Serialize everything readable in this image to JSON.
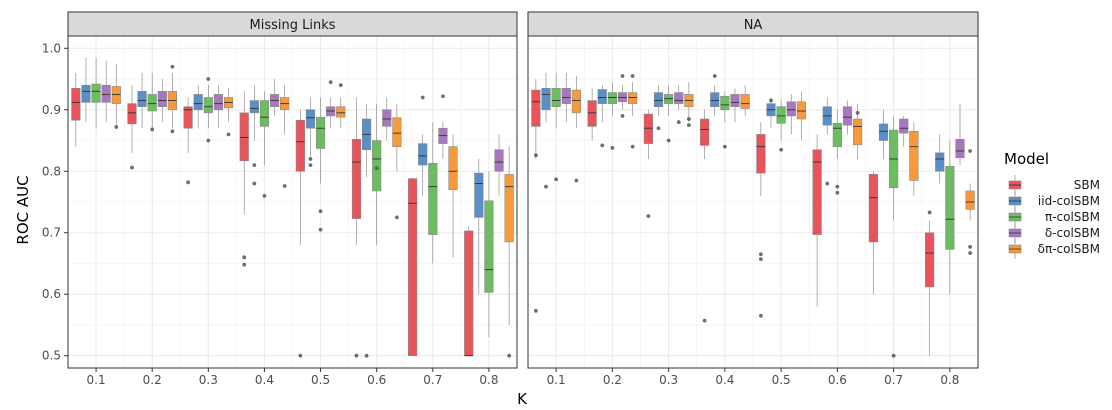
{
  "chart_data": {
    "type": "boxplot",
    "xlabel": "K",
    "ylabel": "ROC AUC",
    "ylim": [
      0.48,
      1.02
    ],
    "yticks": [
      "0.5",
      "0.6",
      "0.7",
      "0.8",
      "0.9",
      "1.0"
    ],
    "categories": [
      "0.1",
      "0.2",
      "0.3",
      "0.4",
      "0.5",
      "0.6",
      "0.7",
      "0.8"
    ],
    "legend_title": "Model",
    "legend_position": "right",
    "series": [
      {
        "name": "SBM",
        "color": "#e8545a"
      },
      {
        "name": "iid-colSBM",
        "color": "#5a8ec6"
      },
      {
        "name": "π-colSBM",
        "color": "#6cbd60"
      },
      {
        "name": "δ-colSBM",
        "color": "#a877bd"
      },
      {
        "name": "δπ-colSBM",
        "color": "#f89a3a"
      }
    ],
    "panels": [
      {
        "title": "Missing Links",
        "boxes": [
          [
            {
              "q": [
                0.84,
                0.883,
                0.912,
                0.935,
                0.96
              ],
              "out": []
            },
            {
              "q": [
                0.88,
                0.912,
                0.93,
                0.94,
                0.985
              ],
              "out": []
            },
            {
              "q": [
                0.87,
                0.912,
                0.93,
                0.942,
                0.985
              ],
              "out": []
            },
            {
              "q": [
                0.88,
                0.912,
                0.925,
                0.94,
                0.98
              ],
              "out": []
            },
            {
              "q": [
                0.87,
                0.91,
                0.925,
                0.938,
                0.975
              ],
              "out": [
                0.872
              ]
            }
          ],
          [
            {
              "q": [
                0.83,
                0.877,
                0.895,
                0.91,
                0.94
              ],
              "out": [
                0.806
              ]
            },
            {
              "q": [
                0.87,
                0.905,
                0.915,
                0.93,
                0.96
              ],
              "out": []
            },
            {
              "q": [
                0.87,
                0.898,
                0.91,
                0.925,
                0.96
              ],
              "out": [
                0.868
              ]
            },
            {
              "q": [
                0.88,
                0.905,
                0.915,
                0.93,
                0.95
              ],
              "out": []
            },
            {
              "q": [
                0.87,
                0.9,
                0.915,
                0.93,
                0.96
              ],
              "out": [
                0.97,
                0.865
              ]
            }
          ],
          [
            {
              "q": [
                0.83,
                0.87,
                0.9,
                0.905,
                0.92
              ],
              "out": [
                0.782
              ]
            },
            {
              "q": [
                0.87,
                0.9,
                0.91,
                0.925,
                0.94
              ],
              "out": []
            },
            {
              "q": [
                0.87,
                0.895,
                0.905,
                0.92,
                0.94
              ],
              "out": [
                0.95,
                0.85
              ]
            },
            {
              "q": [
                0.87,
                0.9,
                0.91,
                0.925,
                0.94
              ],
              "out": []
            },
            {
              "q": [
                0.88,
                0.903,
                0.912,
                0.92,
                0.935
              ],
              "out": [
                0.86
              ]
            }
          ],
          [
            {
              "q": [
                0.73,
                0.817,
                0.855,
                0.895,
                0.93
              ],
              "out": [
                0.66,
                0.648
              ]
            },
            {
              "q": [
                0.85,
                0.895,
                0.902,
                0.915,
                0.94
              ],
              "out": [
                0.81,
                0.78
              ]
            },
            {
              "q": [
                0.81,
                0.873,
                0.888,
                0.915,
                0.93
              ],
              "out": [
                0.76
              ]
            },
            {
              "q": [
                0.89,
                0.905,
                0.915,
                0.925,
                0.95
              ],
              "out": []
            },
            {
              "q": [
                0.86,
                0.9,
                0.91,
                0.92,
                0.94
              ],
              "out": [
                0.776
              ]
            }
          ],
          [
            {
              "q": [
                0.68,
                0.8,
                0.848,
                0.883,
                0.9
              ],
              "out": [
                0.5
              ]
            },
            {
              "q": [
                0.82,
                0.87,
                0.887,
                0.9,
                0.92
              ],
              "out": [
                0.82,
                0.81
              ]
            },
            {
              "q": [
                0.78,
                0.837,
                0.87,
                0.888,
                0.92
              ],
              "out": [
                0.735,
                0.705
              ]
            },
            {
              "q": [
                0.87,
                0.89,
                0.898,
                0.905,
                0.92
              ],
              "out": [
                0.945
              ]
            },
            {
              "q": [
                0.87,
                0.888,
                0.895,
                0.905,
                0.92
              ],
              "out": [
                0.94
              ]
            }
          ],
          [
            {
              "q": [
                0.68,
                0.723,
                0.815,
                0.852,
                0.92
              ],
              "out": [
                0.5
              ]
            },
            {
              "q": [
                0.79,
                0.835,
                0.86,
                0.885,
                0.91
              ],
              "out": [
                0.5
              ]
            },
            {
              "q": [
                0.68,
                0.768,
                0.82,
                0.85,
                0.91
              ],
              "out": [
                0.805
              ]
            },
            {
              "q": [
                0.85,
                0.873,
                0.885,
                0.9,
                0.92
              ],
              "out": []
            },
            {
              "q": [
                0.8,
                0.84,
                0.862,
                0.887,
                0.91
              ],
              "out": [
                0.725
              ]
            }
          ],
          [
            {
              "q": [
                0.5,
                0.5,
                0.748,
                0.788,
                0.79
              ],
              "out": []
            },
            {
              "q": [
                0.76,
                0.81,
                0.825,
                0.845,
                0.86
              ],
              "out": [
                0.92
              ]
            },
            {
              "q": [
                0.65,
                0.697,
                0.775,
                0.813,
                0.88
              ],
              "out": []
            },
            {
              "q": [
                0.82,
                0.845,
                0.858,
                0.87,
                0.88
              ],
              "out": [
                0.922
              ]
            },
            {
              "q": [
                0.66,
                0.77,
                0.8,
                0.84,
                0.86
              ],
              "out": []
            }
          ],
          [
            {
              "q": [
                0.5,
                0.5,
                0.5,
                0.703,
                0.71
              ],
              "out": []
            },
            {
              "q": [
                0.6,
                0.725,
                0.78,
                0.797,
                0.82
              ],
              "out": []
            },
            {
              "q": [
                0.53,
                0.603,
                0.64,
                0.752,
                0.8
              ],
              "out": []
            },
            {
              "q": [
                0.76,
                0.8,
                0.815,
                0.835,
                0.86
              ],
              "out": []
            },
            {
              "q": [
                0.55,
                0.685,
                0.775,
                0.795,
                0.84
              ],
              "out": [
                0.5
              ]
            }
          ]
        ]
      },
      {
        "title": "NA",
        "boxes": [
          [
            {
              "q": [
                0.82,
                0.873,
                0.913,
                0.932,
                0.95
              ],
              "out": [
                0.573,
                0.826
              ]
            },
            {
              "q": [
                0.88,
                0.9,
                0.925,
                0.935,
                0.96
              ],
              "out": [
                0.775
              ]
            },
            {
              "q": [
                0.87,
                0.905,
                0.915,
                0.935,
                0.96
              ],
              "out": [
                0.787
              ]
            },
            {
              "q": [
                0.88,
                0.91,
                0.92,
                0.935,
                0.96
              ],
              "out": []
            },
            {
              "q": [
                0.87,
                0.895,
                0.915,
                0.932,
                0.955
              ],
              "out": [
                0.785
              ]
            }
          ],
          [
            {
              "q": [
                0.85,
                0.873,
                0.895,
                0.915,
                0.935
              ],
              "out": []
            },
            {
              "q": [
                0.88,
                0.91,
                0.92,
                0.933,
                0.94
              ],
              "out": [
                0.842
              ]
            },
            {
              "q": [
                0.89,
                0.91,
                0.92,
                0.928,
                0.945
              ],
              "out": [
                0.838
              ]
            },
            {
              "q": [
                0.9,
                0.913,
                0.92,
                0.928,
                0.94
              ],
              "out": [
                0.955,
                0.89
              ]
            },
            {
              "q": [
                0.89,
                0.91,
                0.92,
                0.928,
                0.945
              ],
              "out": [
                0.955,
                0.84
              ]
            }
          ],
          [
            {
              "q": [
                0.82,
                0.845,
                0.87,
                0.893,
                0.9
              ],
              "out": [
                0.727
              ]
            },
            {
              "q": [
                0.89,
                0.905,
                0.915,
                0.928,
                0.94
              ],
              "out": [
                0.87
              ]
            },
            {
              "q": [
                0.89,
                0.91,
                0.918,
                0.925,
                0.94
              ],
              "out": [
                0.85
              ]
            },
            {
              "q": [
                0.9,
                0.91,
                0.915,
                0.928,
                0.94
              ],
              "out": [
                0.88
              ]
            },
            {
              "q": [
                0.88,
                0.905,
                0.915,
                0.925,
                0.945
              ],
              "out": [
                0.885,
                0.875
              ]
            }
          ],
          [
            {
              "q": [
                0.82,
                0.842,
                0.868,
                0.885,
                0.9
              ],
              "out": [
                0.557
              ]
            },
            {
              "q": [
                0.89,
                0.905,
                0.915,
                0.928,
                0.94
              ],
              "out": [
                0.955
              ]
            },
            {
              "q": [
                0.88,
                0.9,
                0.908,
                0.922,
                0.93
              ],
              "out": [
                0.84
              ]
            },
            {
              "q": [
                0.88,
                0.905,
                0.912,
                0.925,
                0.935
              ],
              "out": []
            },
            {
              "q": [
                0.89,
                0.902,
                0.91,
                0.925,
                0.94
              ],
              "out": []
            }
          ],
          [
            {
              "q": [
                0.76,
                0.797,
                0.84,
                0.86,
                0.88
              ],
              "out": [
                0.565,
                0.665,
                0.657
              ]
            },
            {
              "q": [
                0.87,
                0.89,
                0.9,
                0.91,
                0.92
              ],
              "out": [
                0.915
              ]
            },
            {
              "q": [
                0.85,
                0.878,
                0.89,
                0.905,
                0.915
              ],
              "out": [
                0.835
              ]
            },
            {
              "q": [
                0.86,
                0.89,
                0.9,
                0.913,
                0.925
              ],
              "out": []
            },
            {
              "q": [
                0.85,
                0.885,
                0.898,
                0.913,
                0.93
              ],
              "out": []
            }
          ],
          [
            {
              "q": [
                0.58,
                0.697,
                0.815,
                0.835,
                0.86
              ],
              "out": []
            },
            {
              "q": [
                0.86,
                0.875,
                0.89,
                0.905,
                0.92
              ],
              "out": [
                0.78
              ]
            },
            {
              "q": [
                0.82,
                0.84,
                0.87,
                0.878,
                0.9
              ],
              "out": [
                0.775,
                0.765
              ]
            },
            {
              "q": [
                0.86,
                0.875,
                0.888,
                0.905,
                0.915
              ],
              "out": []
            },
            {
              "q": [
                0.82,
                0.843,
                0.873,
                0.885,
                0.91
              ],
              "out": [
                0.895
              ]
            }
          ],
          [
            {
              "q": [
                0.6,
                0.685,
                0.757,
                0.795,
                0.8
              ],
              "out": []
            },
            {
              "q": [
                0.82,
                0.85,
                0.865,
                0.877,
                0.9
              ],
              "out": []
            },
            {
              "q": [
                0.72,
                0.773,
                0.82,
                0.867,
                0.89
              ],
              "out": [
                0.5
              ]
            },
            {
              "q": [
                0.84,
                0.862,
                0.87,
                0.885,
                0.89
              ],
              "out": []
            },
            {
              "q": [
                0.76,
                0.785,
                0.84,
                0.865,
                0.88
              ],
              "out": []
            }
          ],
          [
            {
              "q": [
                0.5,
                0.612,
                0.667,
                0.7,
                0.72
              ],
              "out": [
                0.733
              ]
            },
            {
              "q": [
                0.78,
                0.8,
                0.82,
                0.83,
                0.86
              ],
              "out": []
            },
            {
              "q": [
                0.6,
                0.673,
                0.722,
                0.808,
                0.85
              ],
              "out": []
            },
            {
              "q": [
                0.81,
                0.822,
                0.833,
                0.852,
                0.91
              ],
              "out": []
            },
            {
              "q": [
                0.72,
                0.738,
                0.75,
                0.768,
                0.78
              ],
              "out": [
                0.833,
                0.677,
                0.667
              ]
            }
          ]
        ]
      }
    ]
  }
}
